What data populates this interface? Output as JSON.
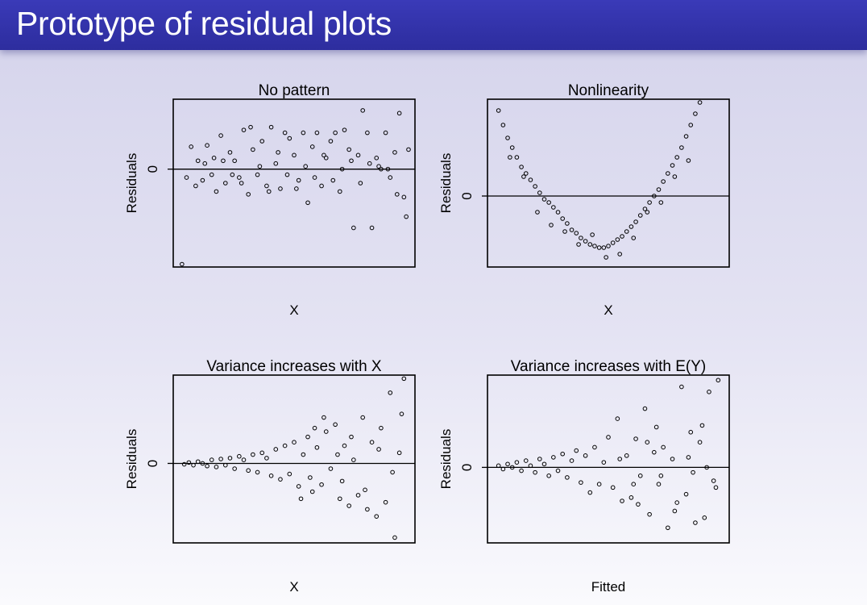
{
  "slide": {
    "title": "Prototype of residual plots"
  },
  "chart_data": [
    {
      "type": "scatter",
      "title": "No pattern",
      "xlabel": "X",
      "ylabel": "Residuals",
      "ytick": "0",
      "ylim": [
        -3.5,
        2.5
      ],
      "reference_line": 0,
      "points": [
        [
          0.01,
          -3.4
        ],
        [
          0.05,
          0.8
        ],
        [
          0.08,
          0.3
        ],
        [
          0.1,
          -0.4
        ],
        [
          0.12,
          0.85
        ],
        [
          0.14,
          -0.2
        ],
        [
          0.16,
          -0.8
        ],
        [
          0.18,
          1.2
        ],
        [
          0.2,
          -0.5
        ],
        [
          0.22,
          0.6
        ],
        [
          0.24,
          0.3
        ],
        [
          0.26,
          -0.3
        ],
        [
          0.28,
          1.4
        ],
        [
          0.3,
          -0.9
        ],
        [
          0.32,
          0.7
        ],
        [
          0.34,
          -0.2
        ],
        [
          0.36,
          1.0
        ],
        [
          0.38,
          -0.6
        ],
        [
          0.4,
          1.5
        ],
        [
          0.42,
          0.2
        ],
        [
          0.44,
          -0.7
        ],
        [
          0.46,
          1.3
        ],
        [
          0.48,
          1.1
        ],
        [
          0.5,
          0.5
        ],
        [
          0.52,
          -0.4
        ],
        [
          0.54,
          1.3
        ],
        [
          0.56,
          -1.2
        ],
        [
          0.58,
          0.8
        ],
        [
          0.6,
          1.3
        ],
        [
          0.62,
          -0.6
        ],
        [
          0.64,
          0.4
        ],
        [
          0.66,
          1.0
        ],
        [
          0.68,
          1.3
        ],
        [
          0.7,
          -0.8
        ],
        [
          0.72,
          1.4
        ],
        [
          0.74,
          0.7
        ],
        [
          0.76,
          -2.1
        ],
        [
          0.78,
          0.5
        ],
        [
          0.8,
          2.1
        ],
        [
          0.82,
          1.3
        ],
        [
          0.84,
          -2.1
        ],
        [
          0.86,
          0.4
        ],
        [
          0.88,
          0.0
        ],
        [
          0.9,
          1.3
        ],
        [
          0.92,
          -0.3
        ],
        [
          0.94,
          0.6
        ],
        [
          0.96,
          2.0
        ],
        [
          0.98,
          -1.0
        ],
        [
          1.0,
          0.7
        ],
        [
          0.03,
          -0.3
        ],
        [
          0.07,
          -0.6
        ],
        [
          0.11,
          0.2
        ],
        [
          0.15,
          0.4
        ],
        [
          0.19,
          0.3
        ],
        [
          0.23,
          -0.2
        ],
        [
          0.27,
          -0.5
        ],
        [
          0.31,
          1.5
        ],
        [
          0.35,
          0.1
        ],
        [
          0.39,
          -0.8
        ],
        [
          0.43,
          0.6
        ],
        [
          0.47,
          -0.2
        ],
        [
          0.51,
          -0.7
        ],
        [
          0.55,
          0.1
        ],
        [
          0.59,
          -0.3
        ],
        [
          0.63,
          0.5
        ],
        [
          0.67,
          -0.4
        ],
        [
          0.71,
          0.0
        ],
        [
          0.75,
          0.3
        ],
        [
          0.79,
          -0.5
        ],
        [
          0.83,
          0.2
        ],
        [
          0.87,
          0.1
        ],
        [
          0.91,
          0.0
        ],
        [
          0.95,
          -0.9
        ],
        [
          0.99,
          -1.7
        ]
      ]
    },
    {
      "type": "scatter",
      "title": "Nonlinearity",
      "xlabel": "X",
      "ylabel": "Residuals",
      "ytick": "0",
      "ylim": [
        -2.2,
        3.0
      ],
      "reference_line": 0,
      "points": [
        [
          0.02,
          2.65
        ],
        [
          0.04,
          2.2
        ],
        [
          0.06,
          1.8
        ],
        [
          0.08,
          1.5
        ],
        [
          0.1,
          1.2
        ],
        [
          0.12,
          0.9
        ],
        [
          0.14,
          0.7
        ],
        [
          0.16,
          0.5
        ],
        [
          0.18,
          0.3
        ],
        [
          0.2,
          0.1
        ],
        [
          0.22,
          -0.1
        ],
        [
          0.24,
          -0.2
        ],
        [
          0.26,
          -0.35
        ],
        [
          0.28,
          -0.5
        ],
        [
          0.3,
          -0.7
        ],
        [
          0.32,
          -0.85
        ],
        [
          0.34,
          -1.05
        ],
        [
          0.36,
          -1.15
        ],
        [
          0.38,
          -1.3
        ],
        [
          0.4,
          -1.4
        ],
        [
          0.42,
          -1.5
        ],
        [
          0.44,
          -1.55
        ],
        [
          0.46,
          -1.6
        ],
        [
          0.48,
          -1.6
        ],
        [
          0.5,
          -1.55
        ],
        [
          0.52,
          -1.45
        ],
        [
          0.54,
          -1.35
        ],
        [
          0.56,
          -1.25
        ],
        [
          0.58,
          -1.1
        ],
        [
          0.6,
          -0.95
        ],
        [
          0.62,
          -0.8
        ],
        [
          0.64,
          -0.6
        ],
        [
          0.66,
          -0.4
        ],
        [
          0.68,
          -0.2
        ],
        [
          0.7,
          0.0
        ],
        [
          0.72,
          0.2
        ],
        [
          0.74,
          0.45
        ],
        [
          0.76,
          0.7
        ],
        [
          0.78,
          0.95
        ],
        [
          0.8,
          1.2
        ],
        [
          0.82,
          1.5
        ],
        [
          0.84,
          1.85
        ],
        [
          0.86,
          2.2
        ],
        [
          0.88,
          2.55
        ],
        [
          0.9,
          2.9
        ],
        [
          0.07,
          1.2
        ],
        [
          0.13,
          0.6
        ],
        [
          0.19,
          -0.5
        ],
        [
          0.25,
          -0.9
        ],
        [
          0.31,
          -1.1
        ],
        [
          0.37,
          -1.5
        ],
        [
          0.43,
          -1.2
        ],
        [
          0.49,
          -1.9
        ],
        [
          0.55,
          -1.8
        ],
        [
          0.61,
          -1.3
        ],
        [
          0.67,
          -0.5
        ],
        [
          0.73,
          -0.2
        ],
        [
          0.79,
          0.6
        ],
        [
          0.85,
          1.1
        ]
      ]
    },
    {
      "type": "scatter",
      "title": "Variance increases with X",
      "xlabel": "X",
      "ylabel": "Residuals",
      "ytick": "0",
      "ylim": [
        -4.5,
        5.0
      ],
      "reference_line": 0,
      "points": [
        [
          0.02,
          -0.05
        ],
        [
          0.04,
          0.05
        ],
        [
          0.06,
          -0.1
        ],
        [
          0.08,
          0.1
        ],
        [
          0.1,
          0.0
        ],
        [
          0.12,
          -0.15
        ],
        [
          0.14,
          0.2
        ],
        [
          0.16,
          -0.2
        ],
        [
          0.18,
          0.25
        ],
        [
          0.2,
          -0.1
        ],
        [
          0.22,
          0.3
        ],
        [
          0.24,
          -0.3
        ],
        [
          0.26,
          0.4
        ],
        [
          0.28,
          0.2
        ],
        [
          0.3,
          -0.4
        ],
        [
          0.32,
          0.5
        ],
        [
          0.34,
          -0.5
        ],
        [
          0.36,
          0.6
        ],
        [
          0.38,
          0.3
        ],
        [
          0.4,
          -0.7
        ],
        [
          0.42,
          0.8
        ],
        [
          0.44,
          -0.9
        ],
        [
          0.46,
          1.0
        ],
        [
          0.48,
          -0.6
        ],
        [
          0.5,
          1.2
        ],
        [
          0.52,
          -1.3
        ],
        [
          0.54,
          0.5
        ],
        [
          0.56,
          1.5
        ],
        [
          0.58,
          -1.6
        ],
        [
          0.6,
          0.9
        ],
        [
          0.62,
          -1.2
        ],
        [
          0.64,
          1.8
        ],
        [
          0.66,
          -0.3
        ],
        [
          0.68,
          2.2
        ],
        [
          0.7,
          -2.0
        ],
        [
          0.72,
          1.0
        ],
        [
          0.74,
          -2.4
        ],
        [
          0.76,
          0.2
        ],
        [
          0.78,
          -1.8
        ],
        [
          0.8,
          2.6
        ],
        [
          0.82,
          -2.6
        ],
        [
          0.84,
          1.2
        ],
        [
          0.86,
          -3.0
        ],
        [
          0.88,
          2.0
        ],
        [
          0.9,
          -2.2
        ],
        [
          0.92,
          4.0
        ],
        [
          0.94,
          -4.2
        ],
        [
          0.96,
          0.6
        ],
        [
          0.98,
          4.8
        ],
        [
          0.57,
          -0.8
        ],
        [
          0.63,
          2.6
        ],
        [
          0.69,
          0.5
        ],
        [
          0.75,
          1.5
        ],
        [
          0.81,
          -1.5
        ],
        [
          0.87,
          0.8
        ],
        [
          0.93,
          -0.5
        ],
        [
          0.97,
          2.8
        ],
        [
          0.53,
          -2.0
        ],
        [
          0.59,
          2.0
        ],
        [
          0.71,
          -1.0
        ]
      ]
    },
    {
      "type": "scatter",
      "title": "Variance increases with E(Y)",
      "xlabel": "Fitted",
      "ylabel": "Residuals",
      "ytick": "0",
      "ylim": [
        -4.5,
        5.5
      ],
      "reference_line": 0,
      "points": [
        [
          0.02,
          0.1
        ],
        [
          0.04,
          -0.1
        ],
        [
          0.06,
          0.2
        ],
        [
          0.08,
          0.0
        ],
        [
          0.1,
          0.3
        ],
        [
          0.12,
          -0.2
        ],
        [
          0.14,
          0.4
        ],
        [
          0.16,
          0.1
        ],
        [
          0.18,
          -0.3
        ],
        [
          0.2,
          0.5
        ],
        [
          0.22,
          0.2
        ],
        [
          0.24,
          -0.5
        ],
        [
          0.26,
          0.6
        ],
        [
          0.28,
          -0.2
        ],
        [
          0.3,
          0.8
        ],
        [
          0.32,
          -0.6
        ],
        [
          0.34,
          0.4
        ],
        [
          0.36,
          1.0
        ],
        [
          0.38,
          -0.9
        ],
        [
          0.4,
          0.7
        ],
        [
          0.42,
          -1.5
        ],
        [
          0.44,
          1.2
        ],
        [
          0.46,
          -1.0
        ],
        [
          0.48,
          0.3
        ],
        [
          0.5,
          1.8
        ],
        [
          0.52,
          -1.2
        ],
        [
          0.54,
          2.9
        ],
        [
          0.56,
          -2.0
        ],
        [
          0.58,
          0.7
        ],
        [
          0.6,
          -1.8
        ],
        [
          0.62,
          1.7
        ],
        [
          0.64,
          -0.5
        ],
        [
          0.66,
          3.5
        ],
        [
          0.68,
          -2.8
        ],
        [
          0.7,
          0.9
        ],
        [
          0.72,
          -1.0
        ],
        [
          0.74,
          1.2
        ],
        [
          0.76,
          -3.6
        ],
        [
          0.78,
          0.5
        ],
        [
          0.8,
          -2.1
        ],
        [
          0.82,
          4.8
        ],
        [
          0.84,
          -1.6
        ],
        [
          0.86,
          2.1
        ],
        [
          0.88,
          -3.3
        ],
        [
          0.9,
          1.5
        ],
        [
          0.92,
          -3.0
        ],
        [
          0.94,
          4.5
        ],
        [
          0.96,
          -0.8
        ],
        [
          0.98,
          5.2
        ],
        [
          0.55,
          0.5
        ],
        [
          0.61,
          -1.0
        ],
        [
          0.67,
          1.5
        ],
        [
          0.73,
          -0.5
        ],
        [
          0.79,
          -2.6
        ],
        [
          0.85,
          0.6
        ],
        [
          0.91,
          2.5
        ],
        [
          0.97,
          -1.2
        ],
        [
          0.63,
          -2.2
        ],
        [
          0.71,
          2.4
        ],
        [
          0.87,
          -0.3
        ],
        [
          0.93,
          0.0
        ]
      ]
    }
  ]
}
